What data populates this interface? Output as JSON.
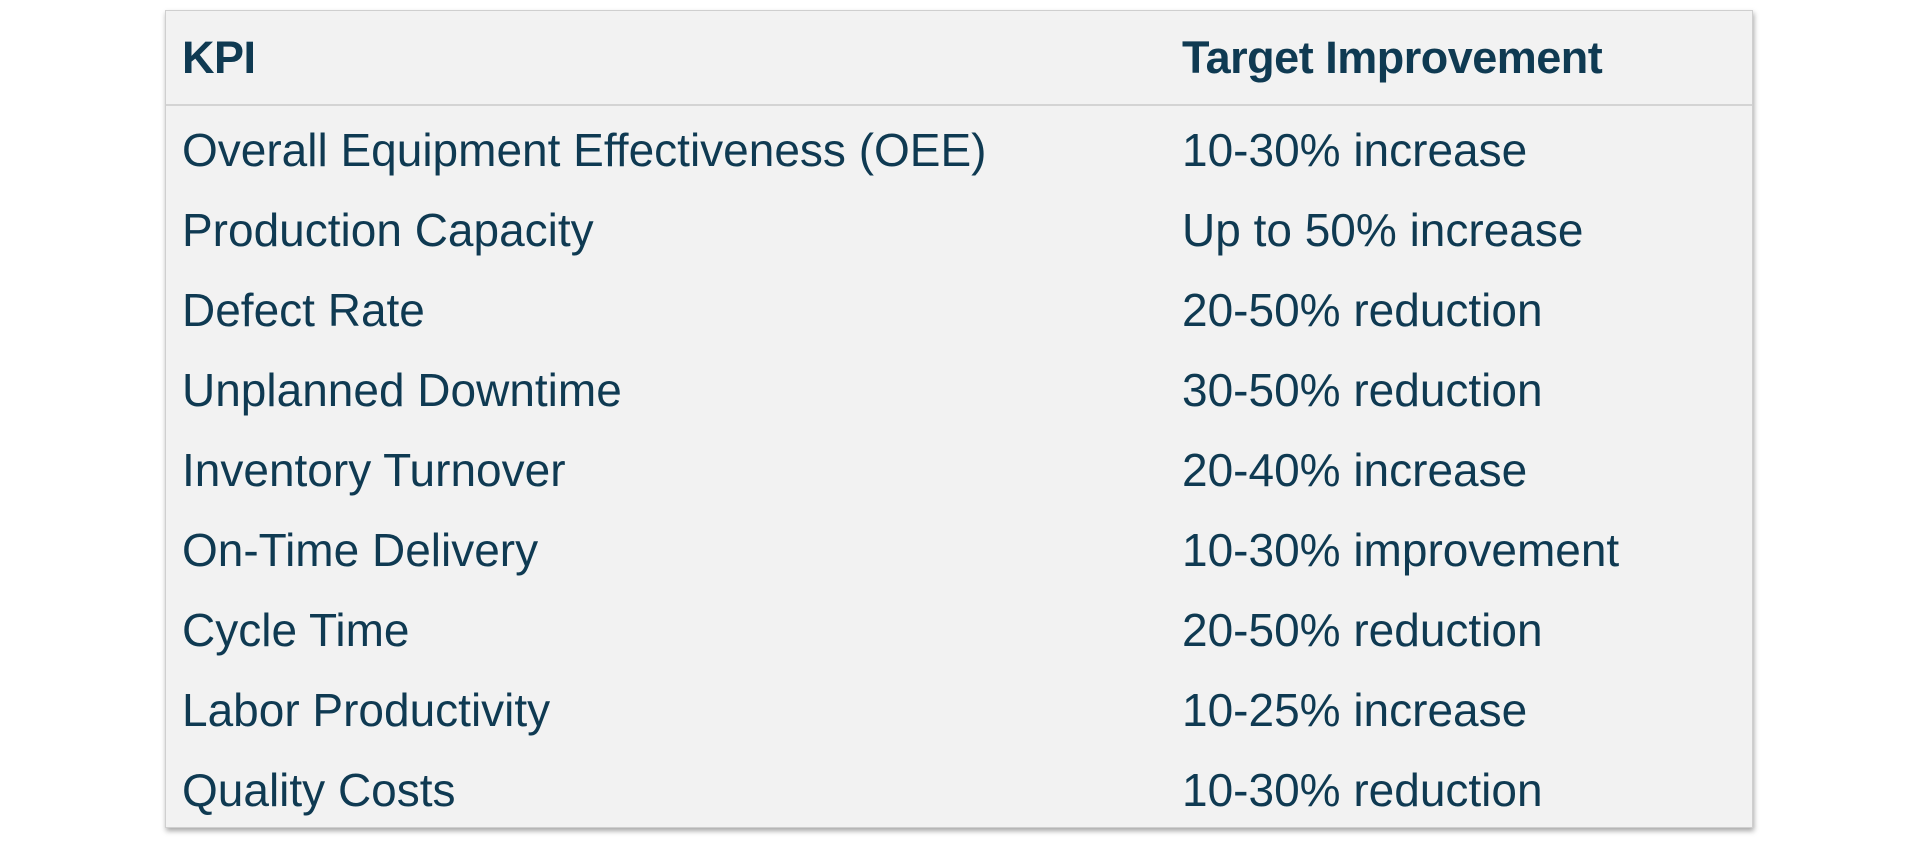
{
  "table": {
    "columns": [
      "KPI",
      "Target Improvement"
    ],
    "rows": [
      [
        "Overall Equipment Effectiveness (OEE)",
        "10-30% increase"
      ],
      [
        "Production Capacity",
        "Up to 50% increase"
      ],
      [
        "Defect Rate",
        "20-50% reduction"
      ],
      [
        "Unplanned Downtime",
        "30-50% reduction"
      ],
      [
        "Inventory Turnover",
        "20-40% increase"
      ],
      [
        "On-Time Delivery",
        "10-30% improvement"
      ],
      [
        "Cycle Time",
        "20-50% reduction"
      ],
      [
        "Labor Productivity",
        "10-25% increase"
      ],
      [
        "Quality Costs",
        "10-30% reduction"
      ]
    ]
  }
}
